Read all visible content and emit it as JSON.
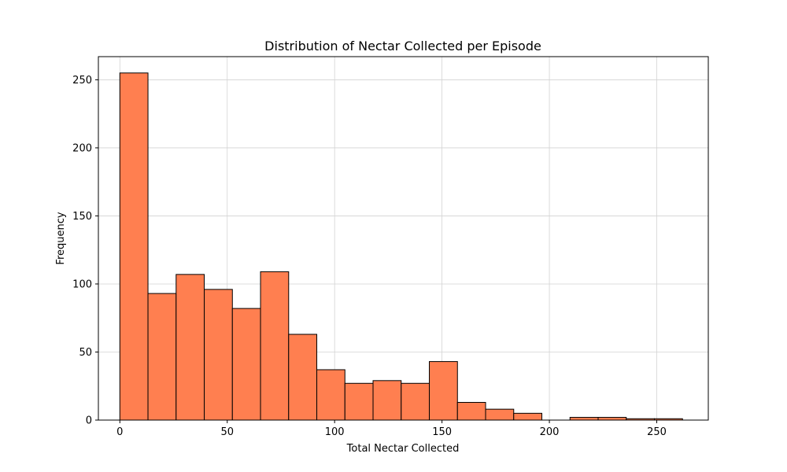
{
  "chart_data": {
    "type": "bar",
    "title": "Distribution of Nectar Collected per Episode",
    "xlabel": "Total Nectar Collected",
    "ylabel": "Frequency",
    "xlim": [
      -10,
      274
    ],
    "ylim": [
      0,
      267
    ],
    "xticks": [
      0,
      50,
      100,
      150,
      200,
      250
    ],
    "yticks": [
      0,
      50,
      100,
      150,
      200,
      250
    ],
    "grid": true,
    "bins": [
      {
        "x0": 0,
        "x1": 13.1,
        "value": 255
      },
      {
        "x0": 13.1,
        "x1": 26.2,
        "value": 93
      },
      {
        "x0": 26.2,
        "x1": 39.3,
        "value": 107
      },
      {
        "x0": 39.3,
        "x1": 52.4,
        "value": 96
      },
      {
        "x0": 52.4,
        "x1": 65.5,
        "value": 82
      },
      {
        "x0": 65.5,
        "x1": 78.6,
        "value": 109
      },
      {
        "x0": 78.6,
        "x1": 91.7,
        "value": 63
      },
      {
        "x0": 91.7,
        "x1": 104.8,
        "value": 37
      },
      {
        "x0": 104.8,
        "x1": 117.9,
        "value": 27
      },
      {
        "x0": 117.9,
        "x1": 131.0,
        "value": 29
      },
      {
        "x0": 131.0,
        "x1": 144.1,
        "value": 27
      },
      {
        "x0": 144.1,
        "x1": 157.2,
        "value": 43
      },
      {
        "x0": 157.2,
        "x1": 170.3,
        "value": 13
      },
      {
        "x0": 170.3,
        "x1": 183.4,
        "value": 8
      },
      {
        "x0": 183.4,
        "x1": 196.5,
        "value": 5
      },
      {
        "x0": 196.5,
        "x1": 209.6,
        "value": 0
      },
      {
        "x0": 209.6,
        "x1": 222.7,
        "value": 2
      },
      {
        "x0": 222.7,
        "x1": 235.8,
        "value": 2
      },
      {
        "x0": 235.8,
        "x1": 248.9,
        "value": 1
      },
      {
        "x0": 248.9,
        "x1": 262.0,
        "value": 1
      }
    ],
    "colors": {
      "bar_fill": "#ff7f50",
      "bar_edge": "#000000",
      "grid": "#d3d3d3"
    }
  }
}
